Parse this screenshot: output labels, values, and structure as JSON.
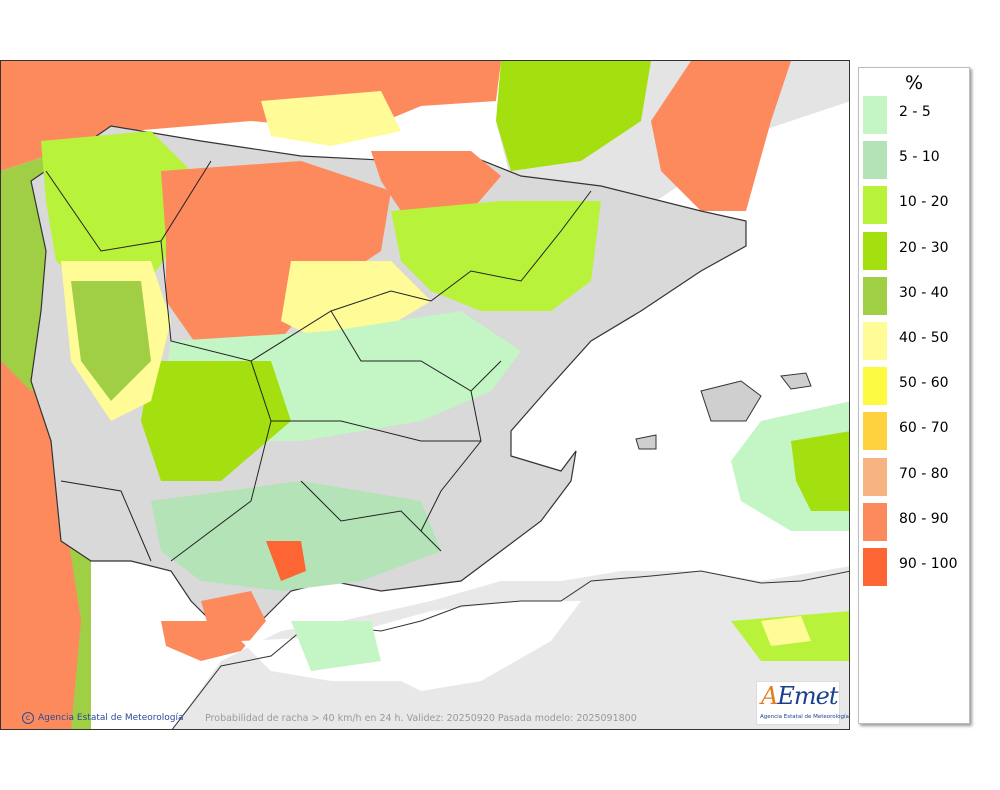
{
  "legend": {
    "title": "%",
    "items": [
      {
        "label": "2 - 5",
        "color": "#c4f5c4"
      },
      {
        "label": "5 - 10",
        "color": "#b3e3b7"
      },
      {
        "label": "10 - 20",
        "color": "#b9f23b"
      },
      {
        "label": "20 - 30",
        "color": "#a4e00f"
      },
      {
        "label": "30 - 40",
        "color": "#a0cf45"
      },
      {
        "label": "40 - 50",
        "color": "#fffc98"
      },
      {
        "label": "50 - 60",
        "color": "#fdfb41"
      },
      {
        "label": "60 - 70",
        "color": "#fdd23e"
      },
      {
        "label": "70 - 80",
        "color": "#f8b382"
      },
      {
        "label": "80 - 90",
        "color": "#fd8a5d"
      },
      {
        "label": "90 - 100",
        "color": "#fd6534"
      }
    ]
  },
  "footer": {
    "credit": "Agencia Estatal de Meteorología",
    "caption": "Probabilidad de racha > 40 km/h en 24 h. Validez: 20250920 Pasada modelo: 2025091800"
  },
  "logo": {
    "main_a": "A",
    "main_rest": "Emet",
    "subtitle": "Agencia Estatal de Meteorología"
  },
  "colors": {
    "land": "#d9d9d9",
    "sea": "#ffffff",
    "border": "#333333",
    "sea_gray": "#e8e8e8"
  }
}
